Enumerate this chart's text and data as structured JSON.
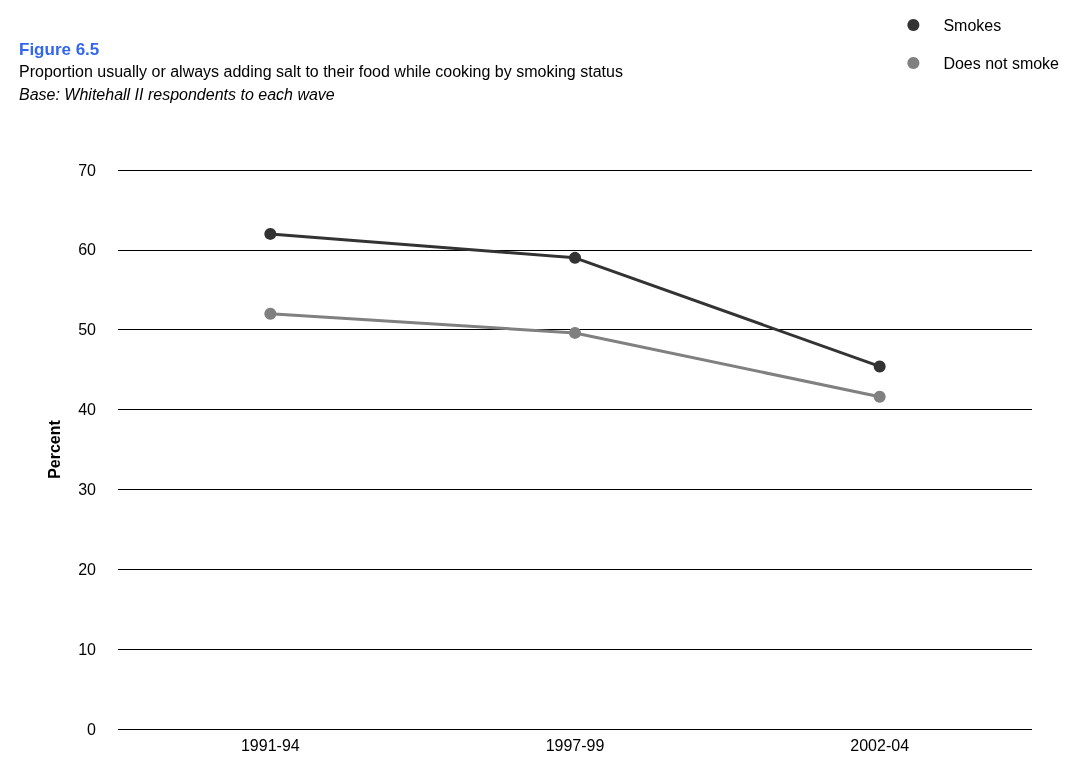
{
  "chart_data": {
    "type": "line",
    "title": "Figure 6.5",
    "subtitle": "Proportion usually or always adding salt to their food while cooking by smoking status",
    "annotations": [
      "Base: Whitehall II respondents to each wave"
    ],
    "ylabel": "Percent",
    "categories": [
      "1991-94",
      "1997-99",
      "2002-04"
    ],
    "series": [
      {
        "name": "Smokes",
        "color": "#333333",
        "values": [
          62,
          59,
          45.4
        ]
      },
      {
        "name": "Does not smoke",
        "color": "#808080",
        "values": [
          52,
          49.6,
          41.6
        ]
      }
    ],
    "ylim": [
      0,
      70
    ],
    "yticks": [
      0,
      10,
      20,
      30,
      40,
      50,
      60,
      70
    ],
    "grid": "y",
    "legend": "top right",
    "marker": "circle",
    "line_style": "solid"
  }
}
